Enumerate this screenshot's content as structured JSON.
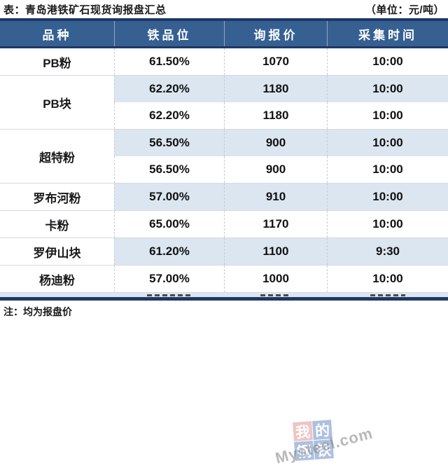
{
  "chart_data": {
    "type": "table",
    "title": "表：青岛港铁矿石现货询报盘汇总",
    "unit_label": "（单位：元/吨）",
    "note": "注：均为报盘价",
    "columns": [
      "品种",
      "铁品位",
      "询报价",
      "采集时间"
    ],
    "groups": [
      {
        "variety": "PB粉",
        "rows": [
          [
            "61.50%",
            "1070",
            "10:00"
          ]
        ]
      },
      {
        "variety": "PB块",
        "rows": [
          [
            "62.20%",
            "1180",
            "10:00"
          ],
          [
            "62.20%",
            "1180",
            "10:00"
          ]
        ]
      },
      {
        "variety": "超特粉",
        "rows": [
          [
            "56.50%",
            "900",
            "10:00"
          ],
          [
            "56.50%",
            "900",
            "10:00"
          ]
        ]
      },
      {
        "variety": "罗布河粉",
        "rows": [
          [
            "57.00%",
            "910",
            "10:00"
          ]
        ]
      },
      {
        "variety": "卡粉",
        "rows": [
          [
            "65.00%",
            "1170",
            "10:00"
          ]
        ]
      },
      {
        "variety": "罗伊山块",
        "rows": [
          [
            "61.20%",
            "1100",
            "9:30"
          ]
        ]
      },
      {
        "variety": "杨迪粉",
        "rows": [
          [
            "57.00%",
            "1000",
            "10:00"
          ]
        ]
      }
    ],
    "clipped_last_row": "partially visible, cut off by table bottom border (illegible)"
  },
  "watermark": {
    "grid_chars": [
      "我",
      "的",
      "钢",
      "铁"
    ],
    "brand_text": "Mysteel.com"
  },
  "colors": {
    "header_bg": "#366092",
    "dark_border": "#1F3864",
    "alt_row_bg": "#DCE6F1",
    "watermark_red": "#E08A8A",
    "watermark_blue": "#5B84C4"
  }
}
